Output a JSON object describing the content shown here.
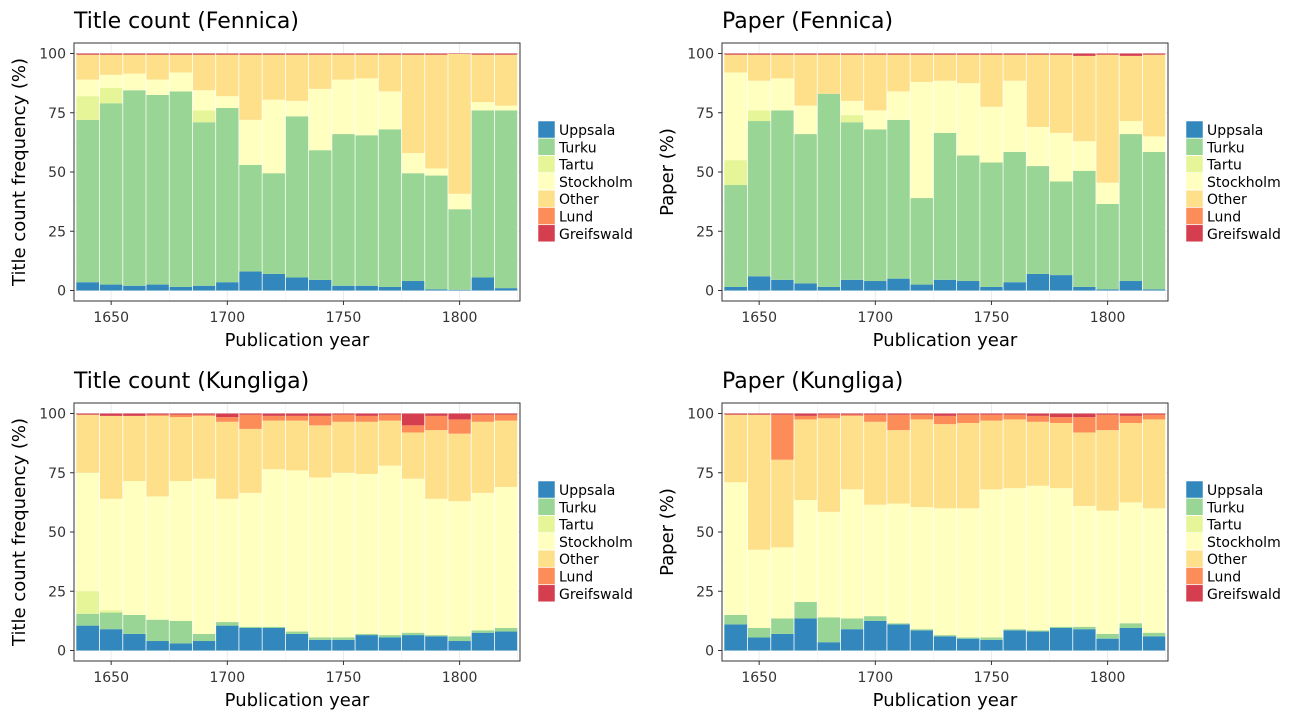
{
  "colors": {
    "Uppsala": "#3288bd",
    "Turku": "#99d594",
    "Tartu": "#e6f598",
    "Stockholm": "#ffffbf",
    "Other": "#fee08b",
    "Lund": "#fc8d59",
    "Greifswald": "#d53e4f"
  },
  "chart_data": [
    {
      "type": "bar",
      "stacked": true,
      "title": "Title count (Fennica)",
      "xlabel": "Publication year",
      "ylabel": "Title count frequency (%)",
      "ylim": [
        0,
        100
      ],
      "yticks": [
        "0",
        "25",
        "50",
        "75",
        "100"
      ],
      "xticks": [
        "1650",
        "1700",
        "1750",
        "1800"
      ],
      "xtick_values": [
        1650,
        1700,
        1750,
        1800
      ],
      "x": [
        1640,
        1650,
        1660,
        1670,
        1680,
        1690,
        1700,
        1710,
        1720,
        1730,
        1740,
        1750,
        1760,
        1770,
        1780,
        1790,
        1800,
        1810,
        1820
      ],
      "legend": [
        "Uppsala",
        "Turku",
        "Tartu",
        "Stockholm",
        "Other",
        "Lund",
        "Greifswald"
      ],
      "legend_position": "right",
      "series": [
        {
          "name": "Uppsala",
          "values": [
            3.5,
            2.5,
            2,
            2.5,
            1.5,
            2,
            3.5,
            8,
            7,
            5.5,
            4.5,
            2,
            2,
            1.5,
            4,
            0.5,
            0.3,
            5.5,
            1
          ]
        },
        {
          "name": "Turku",
          "values": [
            68.5,
            76.5,
            82.5,
            80,
            82.5,
            69,
            73.5,
            45,
            42.5,
            68,
            55,
            64,
            63.5,
            66.5,
            45.5,
            48,
            34,
            70.5,
            75
          ]
        },
        {
          "name": "Tartu",
          "values": [
            10,
            6.5,
            0,
            0,
            0,
            5,
            0,
            0,
            0,
            0,
            0,
            0,
            0,
            0,
            0,
            0,
            0,
            0,
            0
          ]
        },
        {
          "name": "Stockholm",
          "values": [
            7,
            5.5,
            7,
            6.5,
            8,
            8.5,
            5,
            19,
            31,
            6.5,
            26,
            23,
            24,
            16,
            8.5,
            3,
            6.5,
            3.5,
            2
          ]
        },
        {
          "name": "Other",
          "values": [
            10.5,
            8.5,
            8,
            10.5,
            7.5,
            15,
            17.5,
            27.5,
            19,
            19.5,
            14.5,
            10.5,
            10,
            15.5,
            41.5,
            48,
            59,
            20,
            21.5
          ]
        },
        {
          "name": "Lund",
          "values": [
            0,
            0,
            0,
            0,
            0,
            0,
            0,
            0,
            0,
            0,
            0,
            0,
            0,
            0,
            0,
            0,
            0,
            0,
            0
          ]
        },
        {
          "name": "Greifswald",
          "values": [
            0.5,
            0.5,
            0.5,
            0.5,
            0.5,
            0.5,
            0.5,
            0.5,
            0.5,
            0.5,
            0.5,
            0.5,
            0.5,
            0.5,
            0.5,
            0.5,
            0.2,
            0.5,
            0.5
          ]
        }
      ]
    },
    {
      "type": "bar",
      "stacked": true,
      "title": "Paper (Fennica)",
      "xlabel": "Publication year",
      "ylabel": "Paper (%)",
      "ylim": [
        0,
        100
      ],
      "yticks": [
        "0",
        "25",
        "50",
        "75",
        "100"
      ],
      "xticks": [
        "1650",
        "1700",
        "1750",
        "1800"
      ],
      "xtick_values": [
        1650,
        1700,
        1750,
        1800
      ],
      "x": [
        1640,
        1650,
        1660,
        1670,
        1680,
        1690,
        1700,
        1710,
        1720,
        1730,
        1740,
        1750,
        1760,
        1770,
        1780,
        1790,
        1800,
        1810,
        1820
      ],
      "legend": [
        "Uppsala",
        "Turku",
        "Tartu",
        "Stockholm",
        "Other",
        "Lund",
        "Greifswald"
      ],
      "legend_position": "right",
      "series": [
        {
          "name": "Uppsala",
          "values": [
            1.5,
            6,
            4.5,
            3,
            1.5,
            4.5,
            4,
            5,
            2.5,
            4.5,
            4,
            1.5,
            3.5,
            7,
            6.5,
            1.5,
            0.5,
            4,
            0.5
          ]
        },
        {
          "name": "Turku",
          "values": [
            43,
            65.5,
            71.5,
            63,
            81.5,
            66.5,
            64,
            67,
            36.5,
            62,
            53,
            52.5,
            55,
            45.5,
            39.5,
            49,
            36,
            62,
            58
          ]
        },
        {
          "name": "Tartu",
          "values": [
            10.5,
            4.5,
            0,
            0,
            0,
            3,
            0,
            0,
            0,
            0,
            0,
            0,
            0,
            0,
            0,
            0,
            0,
            0,
            0
          ]
        },
        {
          "name": "Stockholm",
          "values": [
            37,
            12.5,
            13.5,
            12,
            0,
            6,
            8,
            12,
            49,
            22,
            30.5,
            23.5,
            30,
            16.5,
            20.5,
            12.5,
            9,
            5.5,
            6.5
          ]
        },
        {
          "name": "Other",
          "values": [
            7.5,
            11,
            10,
            21.5,
            16.5,
            19.5,
            23.5,
            15.5,
            11.5,
            11,
            12,
            22,
            11,
            30.5,
            33,
            36,
            54,
            27.5,
            34.5
          ]
        },
        {
          "name": "Lund",
          "values": [
            0,
            0,
            0,
            0,
            0,
            0,
            0,
            0,
            0,
            0,
            0,
            0,
            0,
            0,
            0,
            0,
            0,
            0,
            0
          ]
        },
        {
          "name": "Greifswald",
          "values": [
            0.5,
            0.5,
            0.5,
            0.5,
            0.5,
            0.5,
            0.5,
            0.5,
            0.5,
            0.5,
            0.5,
            0.5,
            0.5,
            0.5,
            0.5,
            1,
            0.5,
            1,
            0.5
          ]
        }
      ]
    },
    {
      "type": "bar",
      "stacked": true,
      "title": "Title count (Kungliga)",
      "xlabel": "Publication year",
      "ylabel": "Title count frequency (%)",
      "ylim": [
        0,
        100
      ],
      "yticks": [
        "0",
        "25",
        "50",
        "75",
        "100"
      ],
      "xticks": [
        "1650",
        "1700",
        "1750",
        "1800"
      ],
      "xtick_values": [
        1650,
        1700,
        1750,
        1800
      ],
      "x": [
        1640,
        1650,
        1660,
        1670,
        1680,
        1690,
        1700,
        1710,
        1720,
        1730,
        1740,
        1750,
        1760,
        1770,
        1780,
        1790,
        1800,
        1810,
        1820
      ],
      "legend": [
        "Uppsala",
        "Turku",
        "Tartu",
        "Stockholm",
        "Other",
        "Lund",
        "Greifswald"
      ],
      "legend_position": "right",
      "series": [
        {
          "name": "Uppsala",
          "values": [
            10.5,
            9,
            7,
            4,
            3,
            4,
            10.5,
            9.5,
            9.5,
            7,
            4.5,
            4.5,
            6.5,
            5.5,
            6.5,
            6,
            4,
            7.5,
            8
          ]
        },
        {
          "name": "Turku",
          "values": [
            5,
            7,
            8,
            9,
            9.5,
            3,
            1.5,
            0.5,
            0.5,
            1,
            1,
            1,
            0.5,
            1,
            1,
            0.5,
            2,
            1,
            1.5
          ]
        },
        {
          "name": "Tartu",
          "values": [
            9.5,
            1,
            0,
            0,
            0,
            0,
            0,
            0,
            0,
            0,
            0,
            0,
            0,
            0,
            0,
            0,
            0,
            0,
            0
          ]
        },
        {
          "name": "Stockholm",
          "values": [
            50,
            47,
            56.5,
            52,
            59,
            65.5,
            52,
            56.5,
            66.5,
            68,
            67.5,
            69.5,
            67.5,
            71.5,
            65,
            57.5,
            57,
            58,
            59.5
          ]
        },
        {
          "name": "Other",
          "values": [
            24.5,
            35,
            27.5,
            34,
            27,
            26.5,
            32.5,
            27,
            20.5,
            21,
            22,
            21.5,
            22,
            19,
            19.5,
            29,
            28.5,
            30,
            28
          ]
        },
        {
          "name": "Lund",
          "values": [
            0,
            0,
            0,
            0.5,
            1,
            0.5,
            2,
            6,
            2,
            2,
            4,
            3,
            2.5,
            2.5,
            3,
            6,
            6,
            3,
            2.5
          ]
        },
        {
          "name": "Greifswald",
          "values": [
            0.5,
            1,
            1,
            0.5,
            0.5,
            0.5,
            1.5,
            0.5,
            1,
            1,
            1,
            0.5,
            1,
            0.5,
            5,
            1,
            2.5,
            0.5,
            0.5
          ]
        }
      ]
    },
    {
      "type": "bar",
      "stacked": true,
      "title": "Paper (Kungliga)",
      "xlabel": "Publication year",
      "ylabel": "Paper (%)",
      "ylim": [
        0,
        100
      ],
      "yticks": [
        "0",
        "25",
        "50",
        "75",
        "100"
      ],
      "xticks": [
        "1650",
        "1700",
        "1750",
        "1800"
      ],
      "xtick_values": [
        1650,
        1700,
        1750,
        1800
      ],
      "x": [
        1640,
        1650,
        1660,
        1670,
        1680,
        1690,
        1700,
        1710,
        1720,
        1730,
        1740,
        1750,
        1760,
        1770,
        1780,
        1790,
        1800,
        1810,
        1820
      ],
      "legend": [
        "Uppsala",
        "Turku",
        "Tartu",
        "Stockholm",
        "Other",
        "Lund",
        "Greifswald"
      ],
      "legend_position": "right",
      "series": [
        {
          "name": "Uppsala",
          "values": [
            11,
            5.5,
            7,
            13.5,
            3.5,
            9,
            12.5,
            11,
            8.5,
            6,
            5,
            4.5,
            8.5,
            8,
            9.5,
            9,
            5,
            9.5,
            6
          ]
        },
        {
          "name": "Turku",
          "values": [
            4,
            4,
            6.5,
            7,
            10.5,
            4.5,
            2,
            0.5,
            0.5,
            0.5,
            0.5,
            1,
            0.5,
            0.5,
            0.5,
            1,
            2,
            2,
            1.5
          ]
        },
        {
          "name": "Tartu",
          "values": [
            0,
            0,
            0,
            0,
            0,
            0,
            0,
            0,
            0,
            0,
            0,
            0,
            0,
            0,
            0,
            0,
            0,
            0,
            0
          ]
        },
        {
          "name": "Stockholm",
          "values": [
            56,
            33,
            30,
            43,
            44.5,
            54.5,
            47,
            50.5,
            51.5,
            53.5,
            54.5,
            62.5,
            59.5,
            61,
            58.5,
            51,
            52,
            51,
            52.5
          ]
        },
        {
          "name": "Other",
          "values": [
            28.5,
            57,
            37,
            34,
            39.5,
            31,
            35,
            31,
            37,
            35.5,
            36,
            29,
            29,
            27,
            27.5,
            31,
            34,
            33.5,
            37.5
          ]
        },
        {
          "name": "Lund",
          "values": [
            0,
            0,
            19,
            1.5,
            1.5,
            0.5,
            3,
            6.5,
            2,
            3.5,
            3.5,
            2.5,
            2,
            2.5,
            2.5,
            6.5,
            6.5,
            3,
            2
          ]
        },
        {
          "name": "Greifswald",
          "values": [
            0.5,
            0.5,
            0.5,
            1,
            0.5,
            0.5,
            0.5,
            0.5,
            0.5,
            1,
            0.5,
            0.5,
            0.5,
            1,
            1.5,
            1.5,
            0.5,
            1,
            0.5
          ]
        }
      ]
    }
  ]
}
